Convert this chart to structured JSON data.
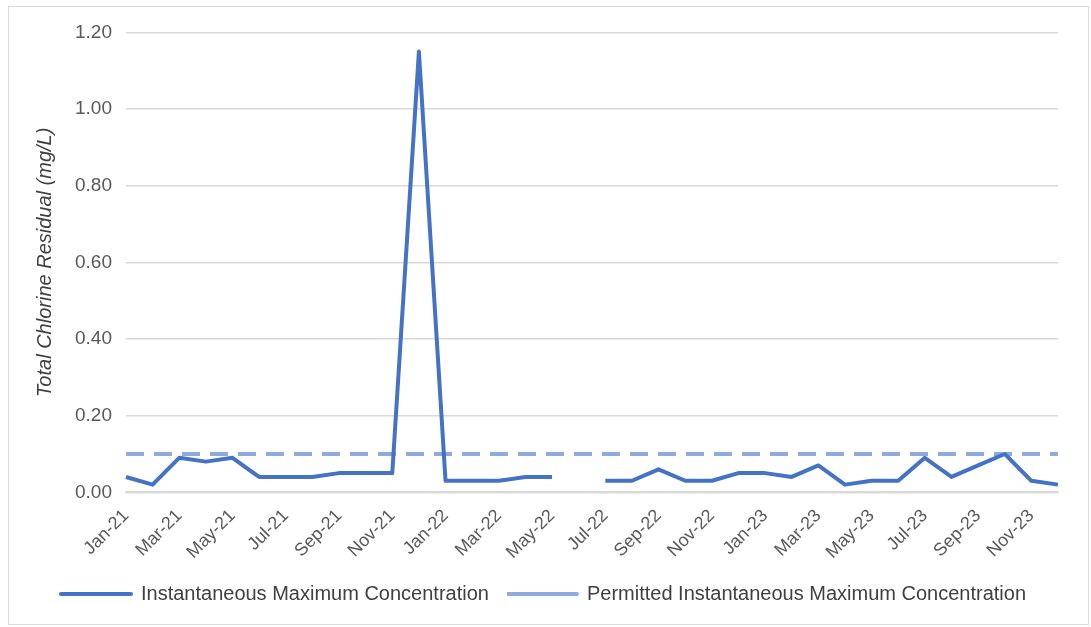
{
  "chart_data": {
    "type": "line",
    "ylabel": "Total Chlorine Residual (mg/L)",
    "categories": [
      "Jan-21",
      null,
      "Mar-21",
      null,
      "May-21",
      null,
      "Jul-21",
      null,
      "Sep-21",
      null,
      "Nov-21",
      null,
      "Jan-22",
      null,
      "Mar-22",
      null,
      "May-22",
      null,
      "Jul-22",
      null,
      "Sep-22",
      null,
      "Nov-22",
      null,
      "Jan-23",
      null,
      "Mar-23",
      null,
      "May-23",
      null,
      "Jul-23",
      null,
      "Sep-23",
      null,
      "Nov-23",
      null
    ],
    "series": [
      {
        "name": "Instantaneous Maximum Concentration",
        "color": "#4472c4",
        "line_style": "solid",
        "values": [
          0.04,
          0.02,
          0.09,
          0.08,
          0.09,
          0.04,
          0.04,
          0.04,
          0.05,
          0.05,
          0.05,
          1.15,
          0.03,
          0.03,
          0.03,
          0.04,
          0.04,
          null,
          0.03,
          0.03,
          0.06,
          0.03,
          0.03,
          0.05,
          0.05,
          0.04,
          0.07,
          0.02,
          0.03,
          0.03,
          0.09,
          0.04,
          0.07,
          0.1,
          0.03,
          0.02
        ]
      },
      {
        "name": "Permitted Instantaneous Maximum Concentration",
        "color": "#8faadc",
        "line_style": "dashed",
        "values": [
          0.1,
          0.1,
          0.1,
          0.1,
          0.1,
          0.1,
          0.1,
          0.1,
          0.1,
          0.1,
          0.1,
          0.1,
          0.1,
          0.1,
          0.1,
          0.1,
          0.1,
          0.1,
          0.1,
          0.1,
          0.1,
          0.1,
          0.1,
          0.1,
          0.1,
          0.1,
          0.1,
          0.1,
          0.1,
          0.1,
          0.1,
          0.1,
          0.1,
          0.1,
          0.1,
          0.1
        ]
      }
    ],
    "ylim": [
      0,
      1.2
    ],
    "yticks": [
      {
        "value": 0,
        "label": "0.00"
      },
      {
        "value": 0.2,
        "label": "0.20"
      },
      {
        "value": 0.4,
        "label": "0.40"
      },
      {
        "value": 0.6,
        "label": "0.60"
      },
      {
        "value": 0.8,
        "label": "0.80"
      },
      {
        "value": 1.0,
        "label": "1.00"
      },
      {
        "value": 1.2,
        "label": "1.20"
      }
    ],
    "grid": "y",
    "legend": "bottom",
    "marker": "none"
  }
}
